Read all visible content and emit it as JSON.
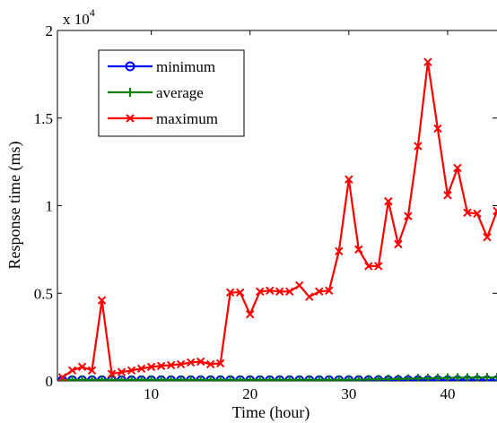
{
  "chart_data": {
    "type": "line",
    "xlabel": "Time (hour)",
    "ylabel": "Response time (ms)",
    "y_multiplier_label": "x 10",
    "y_multiplier_exponent": "4",
    "xlim": [
      0.5,
      45
    ],
    "ylim": [
      0,
      20000
    ],
    "xticks": [
      10,
      20,
      30,
      40
    ],
    "yticks": [
      {
        "value": 0,
        "label": "0"
      },
      {
        "value": 5000,
        "label": "0.5"
      },
      {
        "value": 10000,
        "label": "1"
      },
      {
        "value": 15000,
        "label": "1.5"
      },
      {
        "value": 20000,
        "label": "2"
      }
    ],
    "grid": false,
    "legend_position": "top-left",
    "x": [
      1,
      2,
      3,
      4,
      5,
      6,
      7,
      8,
      9,
      10,
      11,
      12,
      13,
      14,
      15,
      16,
      17,
      18,
      19,
      20,
      21,
      22,
      23,
      24,
      25,
      26,
      27,
      28,
      29,
      30,
      31,
      32,
      33,
      34,
      35,
      36,
      37,
      38,
      39,
      40,
      41,
      42,
      43,
      44,
      45
    ],
    "series": [
      {
        "name": "minimum",
        "color": "#0000ff",
        "marker": "circle",
        "values": [
          30,
          30,
          30,
          30,
          30,
          30,
          30,
          30,
          30,
          30,
          30,
          30,
          30,
          30,
          30,
          30,
          30,
          30,
          30,
          30,
          30,
          30,
          30,
          30,
          30,
          30,
          30,
          30,
          30,
          30,
          30,
          30,
          30,
          30,
          30,
          30,
          30,
          30,
          30,
          30,
          30,
          30,
          30,
          30,
          30
        ]
      },
      {
        "name": "average",
        "color": "#008000",
        "marker": "plus",
        "values": [
          60,
          60,
          60,
          60,
          60,
          60,
          60,
          60,
          60,
          60,
          60,
          60,
          60,
          60,
          60,
          60,
          60,
          60,
          60,
          60,
          60,
          60,
          60,
          60,
          60,
          60,
          60,
          60,
          60,
          70,
          70,
          80,
          90,
          100,
          110,
          120,
          140,
          150,
          160,
          170,
          180,
          180,
          190,
          190,
          190
        ]
      },
      {
        "name": "maximum",
        "color": "#ff0000",
        "marker": "x",
        "values": [
          200,
          600,
          800,
          600,
          4600,
          400,
          500,
          600,
          700,
          800,
          850,
          900,
          950,
          1050,
          1100,
          950,
          1000,
          5050,
          5050,
          3800,
          5100,
          5150,
          5100,
          5100,
          5450,
          4800,
          5100,
          5150,
          7400,
          11500,
          7500,
          6550,
          6550,
          10250,
          7800,
          9400,
          13400,
          18200,
          14400,
          10600,
          12150,
          9600,
          9550,
          8200,
          9700
        ]
      }
    ]
  }
}
